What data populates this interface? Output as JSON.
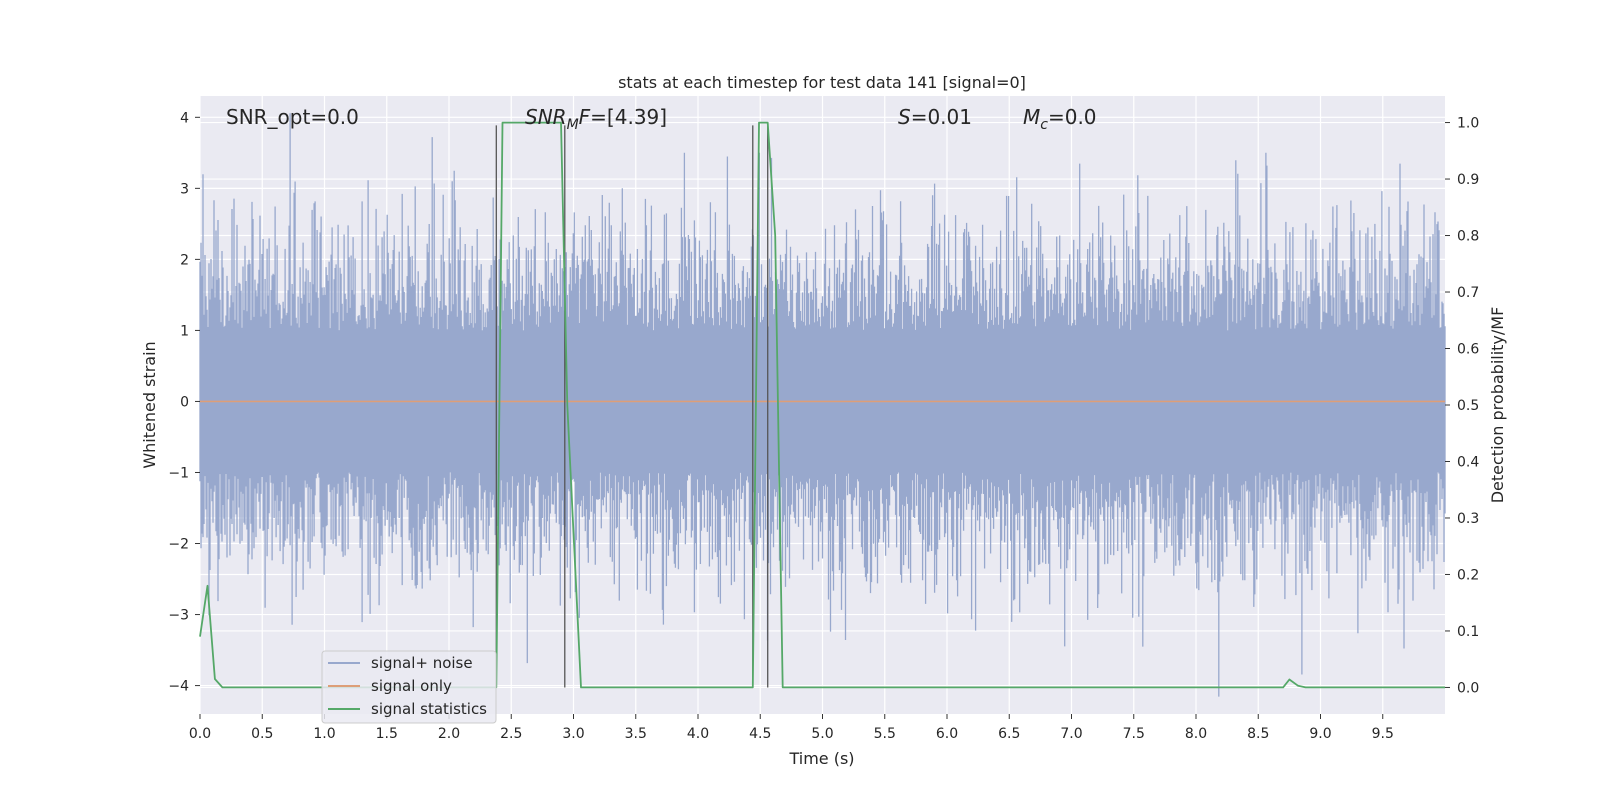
{
  "chart_data": {
    "type": "line",
    "title": "stats at each timestep for test data 141 [signal=0]",
    "xlabel": "Time (s)",
    "ylabel_left": "Whitened strain",
    "ylabel_right": "Detection probability/MF",
    "xlim": [
      0.0,
      10.0
    ],
    "ylim_left": [
      -4.4,
      4.3
    ],
    "ylim_right": [
      -0.047,
      1.047
    ],
    "x_ticks": [
      0.0,
      0.5,
      1.0,
      1.5,
      2.0,
      2.5,
      3.0,
      3.5,
      4.0,
      4.5,
      5.0,
      5.5,
      6.0,
      6.5,
      7.0,
      7.5,
      8.0,
      8.5,
      9.0,
      9.5
    ],
    "x_tick_labels": [
      "0.0",
      "0.5",
      "1.0",
      "1.5",
      "2.0",
      "2.5",
      "3.0",
      "3.5",
      "4.0",
      "4.5",
      "5.0",
      "5.5",
      "6.0",
      "6.5",
      "7.0",
      "7.5",
      "8.0",
      "8.5",
      "9.0",
      "9.5"
    ],
    "y_left_ticks": [
      4,
      3,
      2,
      1,
      0,
      -1,
      -2,
      -3,
      -4
    ],
    "y_left_tick_labels": [
      "4",
      "3",
      "2",
      "1",
      "0",
      "−1",
      "−2",
      "−3",
      "−4"
    ],
    "y_right_ticks": [
      1.0,
      0.9,
      0.8,
      0.7,
      0.6,
      0.5,
      0.4,
      0.3,
      0.2,
      0.1,
      0.0
    ],
    "y_right_tick_labels": [
      "1.0",
      "0.9",
      "0.8",
      "0.7",
      "0.6",
      "0.5",
      "0.4",
      "0.3",
      "0.2",
      "0.1",
      "0.0"
    ],
    "grid": true,
    "background": "#eaeaf2",
    "annotations": {
      "snr_opt": "SNR_opt=0.0",
      "snr_mf_italic": "SNR",
      "snr_mf_sub": "M",
      "snr_mf_italic2": "F",
      "snr_mf_rest": "=[4.39]",
      "s_italic": "S",
      "s_rest": "=0.01",
      "mc_italic": "M",
      "mc_sub": "c",
      "mc_rest": "=0.0"
    },
    "legend": {
      "placement": "lower-left",
      "entries": [
        {
          "label": "signal+ noise",
          "color": "#98a8cd"
        },
        {
          "label": "signal only",
          "color": "#dd9e78"
        },
        {
          "label": "signal statistics",
          "color": "#55a868"
        }
      ]
    },
    "series": [
      {
        "name": "signal+ noise",
        "axis": "left",
        "style": "dense noise, amplitude approx ±1.5 typical with spikes to about ±3.5",
        "color": "#98a8cd",
        "typical_amplitude": 1.5,
        "peak_amplitude": 3.5
      },
      {
        "name": "signal only",
        "axis": "left",
        "color": "#dd9e78",
        "x": [
          0.0,
          10.0
        ],
        "y": [
          0.0,
          0.0
        ]
      },
      {
        "name": "signal statistics",
        "axis": "right",
        "color": "#55a868",
        "x": [
          0.0,
          0.06,
          0.12,
          0.18,
          2.38,
          2.43,
          2.9,
          2.95,
          3.06,
          4.44,
          4.49,
          4.56,
          4.62,
          4.65,
          4.68,
          8.7,
          8.75,
          8.82,
          8.88,
          10.0
        ],
        "y": [
          0.09,
          0.18,
          0.015,
          0.0,
          0.0,
          1.0,
          1.0,
          0.5,
          0.0,
          0.0,
          1.0,
          1.0,
          0.8,
          0.4,
          0.0,
          0.0,
          0.014,
          0.003,
          0.0,
          0.0
        ]
      }
    ],
    "vertical_markers": {
      "color": "#555555",
      "x": [
        2.38,
        2.93,
        4.44,
        4.56
      ],
      "y_top": 0.995
    }
  }
}
